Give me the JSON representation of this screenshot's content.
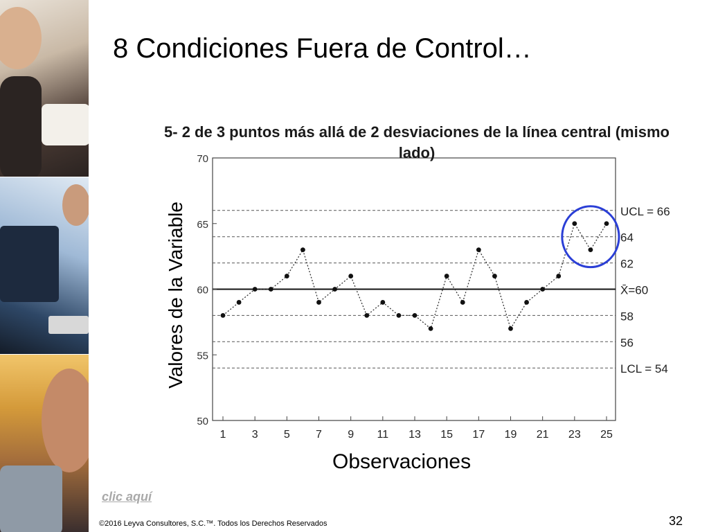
{
  "slide": {
    "title": "8 Condiciones Fuera de Control…",
    "link_label": "clic aquí",
    "copyright": "©2016 Leyva Consultores, S.C.™. Todos los Derechos Reservados",
    "page_number": "32"
  },
  "chart_data": {
    "type": "line",
    "title": "5- 2 de 3 puntos más allá de 2 desviaciones de la línea central (mismo lado)",
    "xlabel": "Observaciones",
    "ylabel": "Valores de la Variable",
    "x": [
      1,
      2,
      3,
      4,
      5,
      6,
      7,
      8,
      9,
      10,
      11,
      12,
      13,
      14,
      15,
      16,
      17,
      18,
      19,
      20,
      21,
      22,
      23,
      24,
      25
    ],
    "series": [
      {
        "values": [
          58,
          59,
          60,
          60,
          61,
          63,
          59,
          60,
          61,
          58,
          59,
          58,
          58,
          57,
          61,
          59,
          63,
          61,
          57,
          59,
          60,
          61,
          65,
          63,
          65
        ]
      }
    ],
    "xlim": [
      1,
      25
    ],
    "ylim": [
      50,
      70
    ],
    "x_ticks": [
      1,
      3,
      5,
      7,
      9,
      11,
      13,
      15,
      17,
      19,
      21,
      23,
      25
    ],
    "x_tick_labels": [
      "1",
      "3",
      "5",
      "7",
      "9",
      "11",
      "13",
      "15",
      "17",
      "19",
      "21",
      "23",
      "25"
    ],
    "y_ticks": [
      50,
      55,
      60,
      65,
      70
    ],
    "y_tick_labels": [
      "50",
      "55",
      "60",
      "65",
      "70"
    ],
    "reference_lines": [
      {
        "value": 66,
        "label": "UCL = 66",
        "style": "dashed"
      },
      {
        "value": 64,
        "label": "64",
        "style": "dashed"
      },
      {
        "value": 62,
        "label": "62",
        "style": "dashed"
      },
      {
        "value": 60,
        "label": "X̄=60",
        "style": "solid"
      },
      {
        "value": 58,
        "label": "58",
        "style": "dashed"
      },
      {
        "value": 56,
        "label": "56",
        "style": "dashed"
      },
      {
        "value": 54,
        "label": "LCL = 54",
        "style": "dashed"
      }
    ],
    "highlight": {
      "x_from": 23,
      "x_to": 25,
      "color": "#2b3fd6"
    },
    "colors": {
      "line": "#333333",
      "marker": "#111111",
      "grid": "#555555",
      "highlight": "#2b3fd6"
    }
  }
}
